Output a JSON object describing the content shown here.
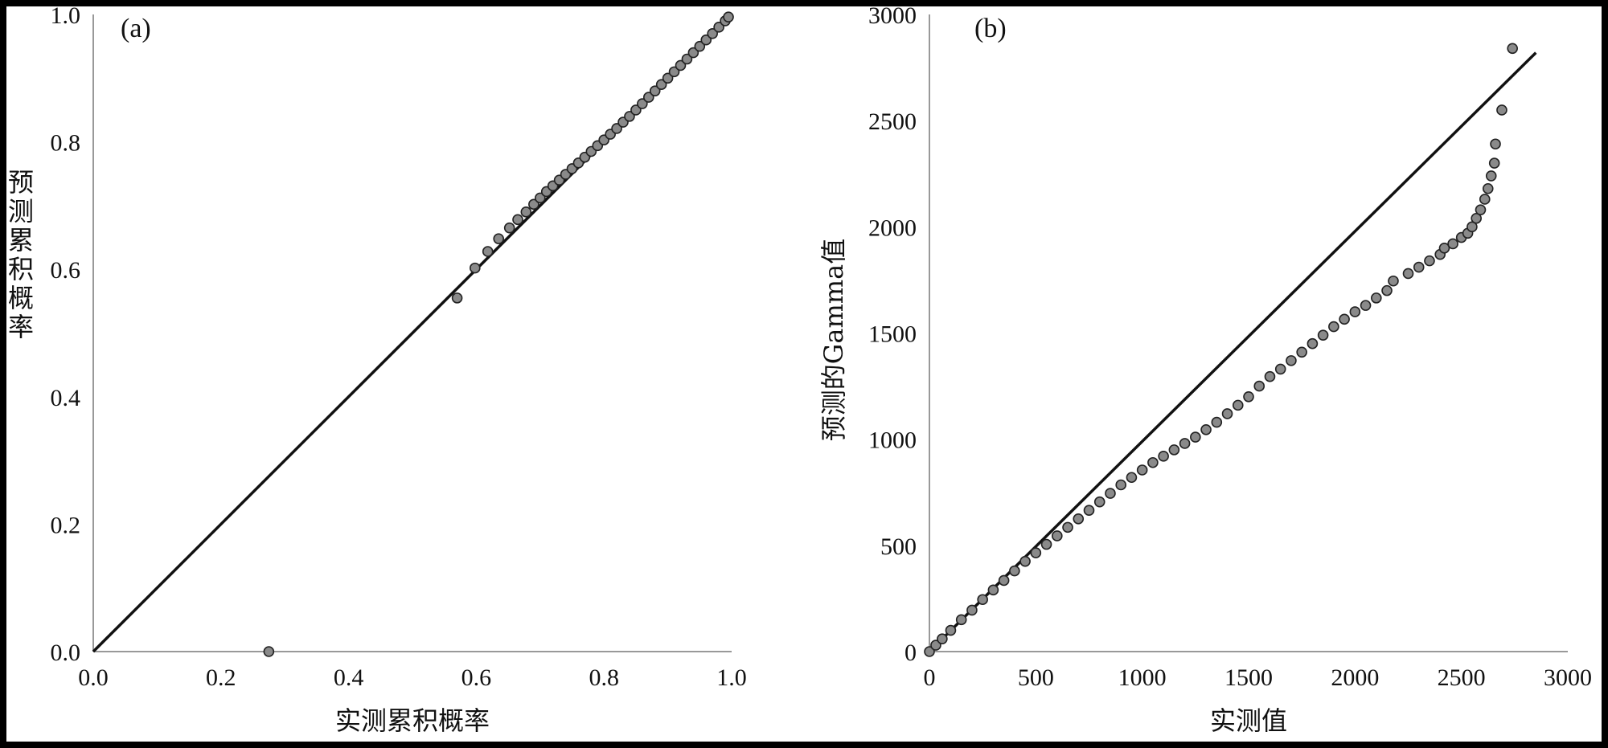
{
  "chart_data": [
    {
      "type": "scatter",
      "panel_label": "(a)",
      "xlabel": "实测累积概率",
      "ylabel": "预测累积概率",
      "xlim": [
        0,
        1
      ],
      "ylim": [
        0,
        1
      ],
      "x_ticks": [
        "0.0",
        "0.2",
        "0.4",
        "0.6",
        "0.8",
        "1.0"
      ],
      "y_ticks": [
        "0.0",
        "0.2",
        "0.4",
        "0.6",
        "0.8",
        "1.0"
      ],
      "reference_line": [
        [
          0,
          0
        ],
        [
          1,
          1
        ]
      ],
      "grid": false,
      "series": [
        {
          "points": [
            [
              0.275,
              0.0
            ],
            [
              0.57,
              0.555
            ],
            [
              0.598,
              0.602
            ],
            [
              0.618,
              0.628
            ],
            [
              0.635,
              0.648
            ],
            [
              0.652,
              0.665
            ],
            [
              0.665,
              0.678
            ],
            [
              0.678,
              0.69
            ],
            [
              0.69,
              0.702
            ],
            [
              0.7,
              0.712
            ],
            [
              0.71,
              0.722
            ],
            [
              0.72,
              0.731
            ],
            [
              0.73,
              0.74
            ],
            [
              0.74,
              0.749
            ],
            [
              0.75,
              0.758
            ],
            [
              0.76,
              0.767
            ],
            [
              0.77,
              0.776
            ],
            [
              0.78,
              0.785
            ],
            [
              0.79,
              0.794
            ],
            [
              0.8,
              0.803
            ],
            [
              0.81,
              0.812
            ],
            [
              0.82,
              0.821
            ],
            [
              0.83,
              0.831
            ],
            [
              0.84,
              0.84
            ],
            [
              0.85,
              0.85
            ],
            [
              0.86,
              0.86
            ],
            [
              0.87,
              0.87
            ],
            [
              0.88,
              0.88
            ],
            [
              0.89,
              0.89
            ],
            [
              0.9,
              0.9
            ],
            [
              0.91,
              0.91
            ],
            [
              0.92,
              0.92
            ],
            [
              0.93,
              0.93
            ],
            [
              0.94,
              0.94
            ],
            [
              0.95,
              0.95
            ],
            [
              0.96,
              0.96
            ],
            [
              0.97,
              0.97
            ],
            [
              0.98,
              0.98
            ],
            [
              0.99,
              0.99
            ],
            [
              0.995,
              0.996
            ]
          ]
        }
      ]
    },
    {
      "type": "scatter",
      "panel_label": "(b)",
      "xlabel": "实测值",
      "ylabel": "预测的Gamma值",
      "xlim": [
        0,
        3000
      ],
      "ylim": [
        0,
        3000
      ],
      "x_ticks": [
        "0",
        "500",
        "1000",
        "1500",
        "2000",
        "2500",
        "3000"
      ],
      "y_ticks": [
        "0",
        "500",
        "1000",
        "1500",
        "2000",
        "2500",
        "3000"
      ],
      "reference_line": [
        [
          0,
          0
        ],
        [
          2850,
          2820
        ]
      ],
      "grid": false,
      "series": [
        {
          "points": [
            [
              0,
              0
            ],
            [
              30,
              30
            ],
            [
              60,
              60
            ],
            [
              100,
              100
            ],
            [
              150,
              150
            ],
            [
              200,
              195
            ],
            [
              250,
              245
            ],
            [
              300,
              290
            ],
            [
              350,
              335
            ],
            [
              400,
              380
            ],
            [
              450,
              425
            ],
            [
              500,
              465
            ],
            [
              550,
              505
            ],
            [
              600,
              545
            ],
            [
              650,
              585
            ],
            [
              700,
              625
            ],
            [
              750,
              665
            ],
            [
              800,
              705
            ],
            [
              850,
              745
            ],
            [
              900,
              785
            ],
            [
              950,
              820
            ],
            [
              1000,
              855
            ],
            [
              1050,
              890
            ],
            [
              1100,
              920
            ],
            [
              1150,
              950
            ],
            [
              1200,
              980
            ],
            [
              1250,
              1010
            ],
            [
              1300,
              1045
            ],
            [
              1350,
              1080
            ],
            [
              1400,
              1120
            ],
            [
              1450,
              1160
            ],
            [
              1500,
              1200
            ],
            [
              1550,
              1250
            ],
            [
              1600,
              1295
            ],
            [
              1650,
              1330
            ],
            [
              1700,
              1370
            ],
            [
              1750,
              1410
            ],
            [
              1800,
              1450
            ],
            [
              1850,
              1490
            ],
            [
              1900,
              1530
            ],
            [
              1950,
              1565
            ],
            [
              2000,
              1600
            ],
            [
              2050,
              1630
            ],
            [
              2100,
              1665
            ],
            [
              2150,
              1700
            ],
            [
              2180,
              1745
            ],
            [
              2250,
              1780
            ],
            [
              2300,
              1810
            ],
            [
              2350,
              1840
            ],
            [
              2400,
              1870
            ],
            [
              2420,
              1900
            ],
            [
              2460,
              1920
            ],
            [
              2500,
              1950
            ],
            [
              2530,
              1970
            ],
            [
              2550,
              2000
            ],
            [
              2570,
              2040
            ],
            [
              2590,
              2080
            ],
            [
              2610,
              2130
            ],
            [
              2625,
              2180
            ],
            [
              2640,
              2240
            ],
            [
              2655,
              2300
            ],
            [
              2660,
              2390
            ],
            [
              2690,
              2550
            ],
            [
              2740,
              2840
            ]
          ]
        }
      ]
    }
  ]
}
